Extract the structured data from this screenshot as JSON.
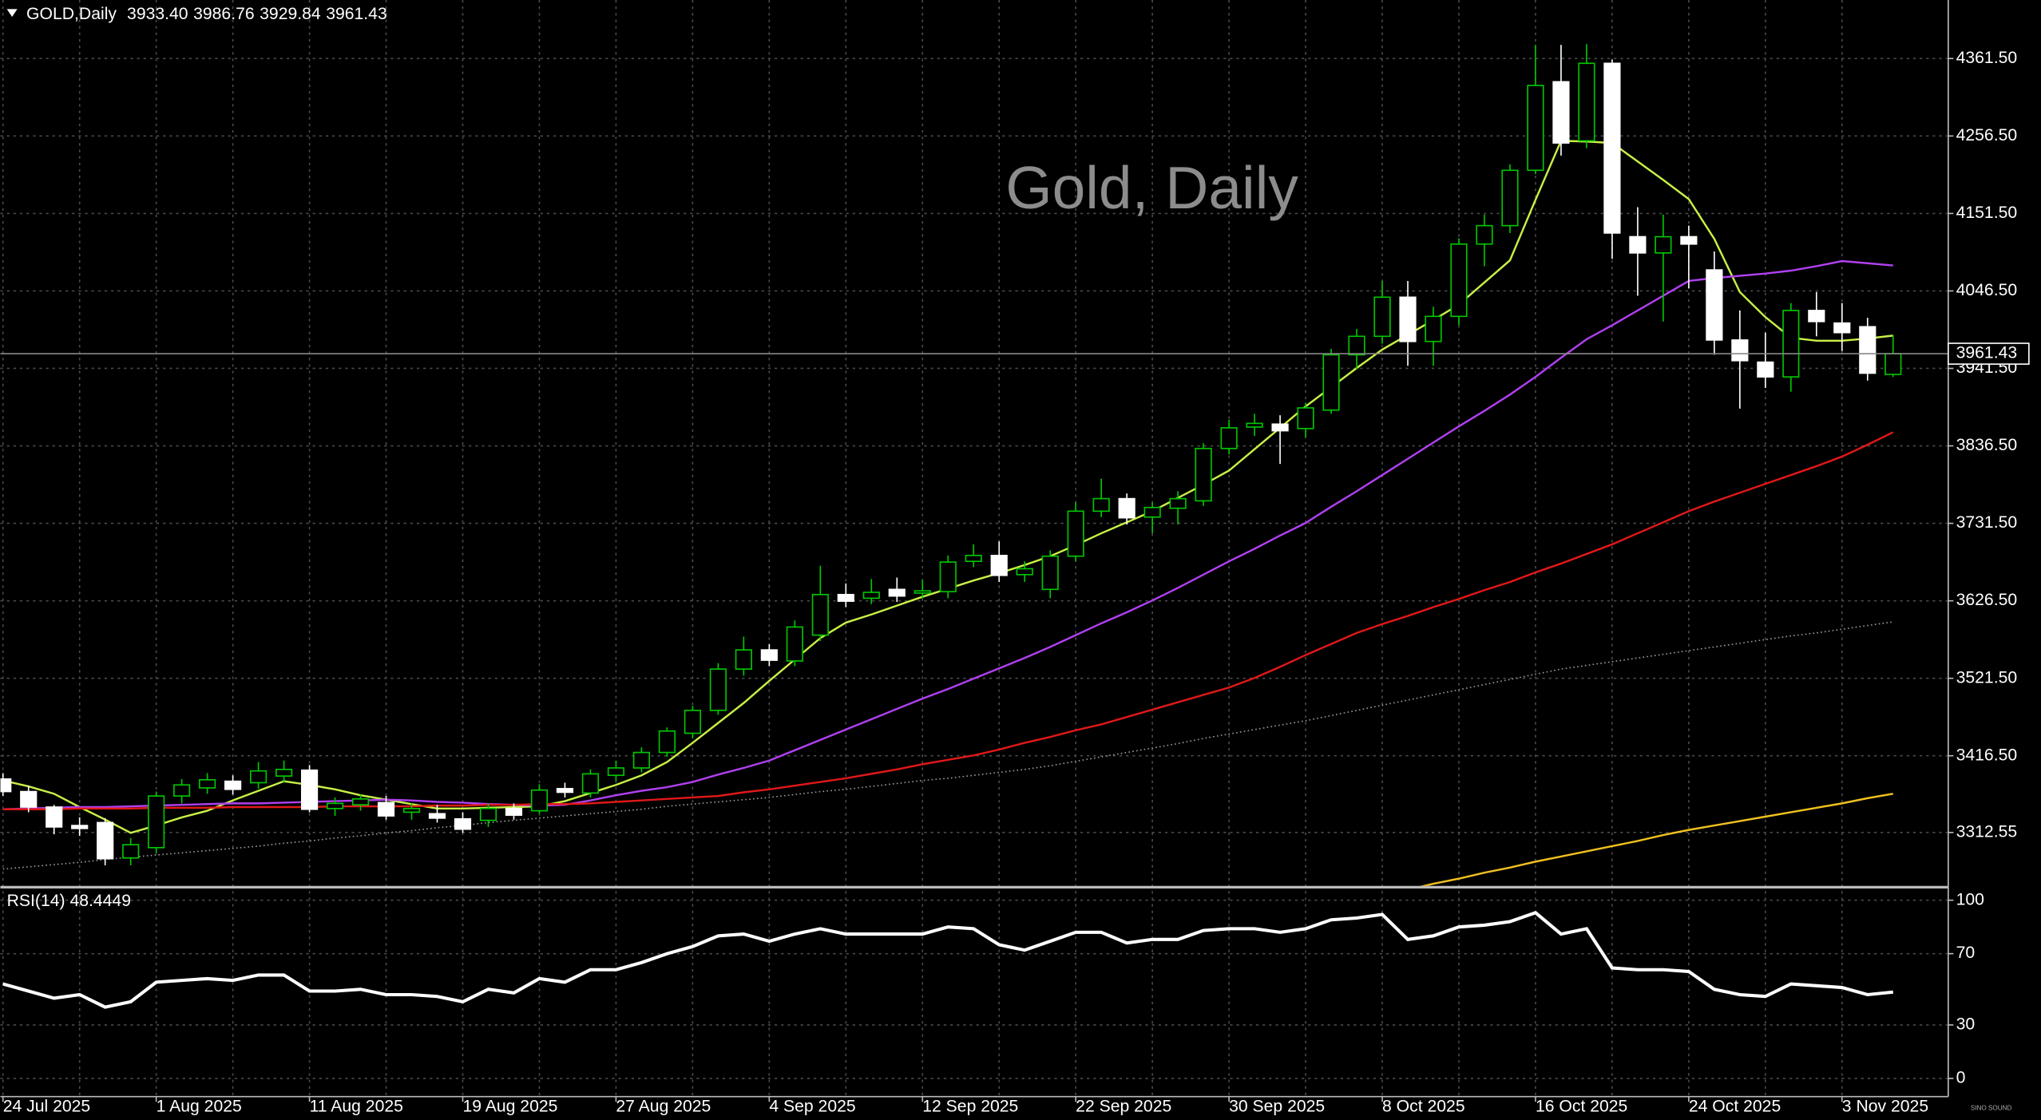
{
  "chart_data": [
    {
      "type": "candlestick",
      "title": "GOLD,Daily",
      "last_bar_labels": [
        "3933.40",
        "3986.76",
        "3929.84",
        "3961.43"
      ],
      "watermark": "Gold, Daily",
      "logo_text": "SINO SOUND",
      "categories": [
        "24 Jul 2025",
        null,
        null,
        null,
        null,
        null,
        "1 Aug 2025",
        null,
        null,
        null,
        null,
        null,
        "11 Aug 2025",
        null,
        null,
        null,
        null,
        null,
        "19 Aug 2025",
        null,
        null,
        null,
        null,
        null,
        "27 Aug 2025",
        null,
        null,
        null,
        null,
        null,
        "4 Sep 2025",
        null,
        null,
        null,
        null,
        null,
        "12 Sep 2025",
        null,
        null,
        null,
        null,
        null,
        "22 Sep 2025",
        null,
        null,
        null,
        null,
        null,
        "30 Sep 2025",
        null,
        null,
        null,
        null,
        null,
        "8 Oct 2025",
        null,
        null,
        null,
        null,
        null,
        "16 Oct 2025",
        null,
        null,
        null,
        null,
        null,
        "24 Oct 2025",
        null,
        null,
        null,
        null,
        null,
        "3 Nov 2025",
        null,
        null
      ],
      "open": [
        3385,
        3368,
        3347,
        3322,
        3326,
        3278,
        3292,
        3362,
        3373,
        3382,
        3380,
        3389,
        3397,
        3345,
        3350,
        3353,
        3340,
        3338,
        3331,
        3329,
        3345,
        3342,
        3372,
        3366,
        3390,
        3400,
        3421,
        3447,
        3478,
        3534,
        3560,
        3545,
        3580,
        3635,
        3630,
        3642,
        3637,
        3639,
        3680,
        3688,
        3662,
        3642,
        3687,
        3748,
        3765,
        3740,
        3752,
        3762,
        3833,
        3862,
        3866,
        3860,
        3885,
        3960,
        3985,
        4038,
        3978,
        4012,
        4110,
        4135,
        4210,
        4330,
        4250,
        4355,
        4120,
        4098,
        4120,
        4075,
        3980,
        3950,
        3930,
        4020,
        4003,
        3998,
        3933.4
      ],
      "high": [
        3393,
        3376,
        3350,
        3333,
        3332,
        3305,
        3368,
        3385,
        3393,
        3390,
        3408,
        3410,
        3404,
        3360,
        3364,
        3362,
        3352,
        3350,
        3340,
        3352,
        3352,
        3378,
        3380,
        3398,
        3410,
        3428,
        3455,
        3484,
        3542,
        3578,
        3568,
        3600,
        3674,
        3650,
        3656,
        3658,
        3655,
        3688,
        3703,
        3707,
        3680,
        3695,
        3760,
        3792,
        3772,
        3760,
        3775,
        3840,
        3872,
        3880,
        3878,
        3895,
        3968,
        3995,
        4060,
        4060,
        4025,
        4118,
        4150,
        4218,
        4380,
        4380,
        4381,
        4360,
        4160,
        4150,
        4135,
        4100,
        4020,
        3990,
        4030,
        4045,
        4030,
        4010,
        3986.76
      ],
      "low": [
        3362,
        3340,
        3310,
        3308,
        3268,
        3268,
        3285,
        3352,
        3365,
        3364,
        3372,
        3380,
        3340,
        3335,
        3342,
        3330,
        3330,
        3326,
        3312,
        3320,
        3330,
        3338,
        3360,
        3360,
        3382,
        3394,
        3415,
        3440,
        3472,
        3525,
        3538,
        3538,
        3572,
        3618,
        3622,
        3625,
        3630,
        3630,
        3672,
        3652,
        3652,
        3630,
        3680,
        3740,
        3730,
        3718,
        3730,
        3755,
        3825,
        3850,
        3812,
        3848,
        3880,
        3940,
        3975,
        3945,
        3945,
        4000,
        4080,
        4125,
        4205,
        4230,
        4240,
        4090,
        4040,
        4005,
        4050,
        3960,
        3887,
        3915,
        3910,
        3985,
        3965,
        3925,
        3929.84
      ],
      "close": [
        3368,
        3347,
        3320,
        3318,
        3277,
        3296,
        3362,
        3377,
        3384,
        3371,
        3396,
        3398,
        3344,
        3352,
        3358,
        3335,
        3345,
        3332,
        3317,
        3345,
        3336,
        3370,
        3367,
        3392,
        3400,
        3421,
        3450,
        3478,
        3534,
        3560,
        3546,
        3591,
        3635,
        3626,
        3638,
        3633,
        3640,
        3679,
        3688,
        3661,
        3670,
        3687,
        3748,
        3765,
        3739,
        3753,
        3765,
        3833,
        3861,
        3867,
        3857,
        3888,
        3960,
        3985,
        4038,
        3978,
        4012,
        4110,
        4135,
        4210,
        4325,
        4247,
        4355,
        4125,
        4098,
        4120,
        4110,
        3980,
        3952,
        3930,
        4020,
        4005,
        3990,
        3935,
        3961.43
      ],
      "bull_color": "#00c800",
      "bear_color": "#ffffff",
      "series": [
        {
          "color": "#c8f046",
          "style": "solid",
          "values": [
            3383,
            3375,
            3365,
            3347,
            3330,
            3312,
            3322,
            3333,
            3342,
            3356,
            3369,
            3382,
            3377,
            3371,
            3363,
            3357,
            3351,
            3345,
            3345,
            3346,
            3347,
            3348,
            3355,
            3366,
            3377,
            3390,
            3408,
            3434,
            3461,
            3488,
            3518,
            3547,
            3576,
            3597,
            3608,
            3620,
            3632,
            3643,
            3654,
            3664,
            3675,
            3687,
            3702,
            3718,
            3733,
            3748,
            3766,
            3784,
            3803,
            3832,
            3861,
            3890,
            3916,
            3942,
            3967,
            3987,
            4007,
            4028,
            4058,
            4088,
            4170,
            4250,
            4249,
            4247,
            4222,
            4197,
            4171,
            4117,
            4045,
            4011,
            3983,
            3979,
            3979,
            3982,
            3986
          ]
        },
        {
          "color": "#b040f0",
          "style": "solid",
          "values": [
            3344,
            3345,
            3346,
            3347,
            3347,
            3348,
            3349,
            3350,
            3351,
            3352,
            3352,
            3353,
            3354,
            3355,
            3356,
            3357,
            3356,
            3354,
            3353,
            3351,
            3350,
            3349,
            3350,
            3356,
            3363,
            3369,
            3374,
            3381,
            3391,
            3400,
            3410,
            3424,
            3438,
            3452,
            3466,
            3480,
            3494,
            3507,
            3521,
            3535,
            3549,
            3564,
            3580,
            3596,
            3611,
            3627,
            3644,
            3662,
            3680,
            3697,
            3715,
            3732,
            3754,
            3775,
            3797,
            3819,
            3841,
            3863,
            3884,
            3906,
            3930,
            3956,
            3981,
            4000,
            4020,
            4040,
            4060,
            4064,
            4067,
            4070,
            4074,
            4080,
            4087,
            4084,
            4081
          ]
        },
        {
          "color": "#e01818",
          "style": "solid",
          "values": [
            3344,
            3344,
            3344,
            3345,
            3345,
            3345,
            3346,
            3346,
            3346,
            3347,
            3347,
            3347,
            3347,
            3348,
            3348,
            3348,
            3348,
            3349,
            3349,
            3350,
            3350,
            3351,
            3351,
            3352,
            3354,
            3356,
            3358,
            3360,
            3362,
            3367,
            3371,
            3376,
            3381,
            3386,
            3392,
            3398,
            3405,
            3411,
            3417,
            3425,
            3434,
            3442,
            3451,
            3459,
            3469,
            3479,
            3489,
            3499,
            3509,
            3522,
            3537,
            3553,
            3568,
            3583,
            3595,
            3606,
            3618,
            3629,
            3641,
            3652,
            3665,
            3677,
            3690,
            3703,
            3718,
            3733,
            3748,
            3761,
            3773,
            3785,
            3797,
            3809,
            3822,
            3838,
            3855
          ]
        },
        {
          "color": "#9a9a9a",
          "style": "dotted",
          "values": [
            3263,
            3266,
            3269,
            3272,
            3276,
            3279,
            3282,
            3285,
            3288,
            3291,
            3294,
            3298,
            3301,
            3305,
            3308,
            3312,
            3315,
            3319,
            3322,
            3326,
            3329,
            3332,
            3335,
            3338,
            3341,
            3344,
            3348,
            3351,
            3354,
            3357,
            3360,
            3364,
            3368,
            3371,
            3375,
            3379,
            3383,
            3386,
            3390,
            3394,
            3398,
            3403,
            3409,
            3415,
            3421,
            3427,
            3433,
            3440,
            3446,
            3452,
            3458,
            3464,
            3471,
            3478,
            3485,
            3492,
            3499,
            3506,
            3513,
            3520,
            3527,
            3534,
            3539,
            3544,
            3549,
            3554,
            3559,
            3564,
            3569,
            3574,
            3579,
            3583,
            3588,
            3593,
            3598
          ]
        },
        {
          "color": "#f0c020",
          "style": "solid",
          "values": [
            null,
            null,
            null,
            null,
            null,
            null,
            null,
            null,
            null,
            null,
            null,
            null,
            null,
            null,
            null,
            null,
            null,
            null,
            null,
            null,
            null,
            null,
            null,
            null,
            null,
            null,
            null,
            null,
            null,
            null,
            null,
            null,
            null,
            null,
            null,
            null,
            null,
            null,
            null,
            null,
            null,
            null,
            null,
            null,
            null,
            null,
            null,
            null,
            null,
            null,
            null,
            null,
            null,
            null,
            null,
            3235,
            3243,
            3250,
            3258,
            3265,
            3273,
            3280,
            3287,
            3294,
            3301,
            3309,
            3316,
            3322,
            3328,
            3334,
            3340,
            3346,
            3352,
            3359,
            3365
          ]
        }
      ],
      "current_price": {
        "value": 3961.43,
        "label": "3961.43"
      },
      "ylim": [
        3240.2,
        4440.8
      ],
      "yticks": [
        {
          "value": 4361.5,
          "label": "4361.50"
        },
        {
          "value": 4256.5,
          "label": "4256.50"
        },
        {
          "value": 4151.5,
          "label": "4151.50"
        },
        {
          "value": 4046.5,
          "label": "4046.50"
        },
        {
          "value": 3941.5,
          "label": "3941.50"
        },
        {
          "value": 3836.5,
          "label": "3836.50"
        },
        {
          "value": 3731.5,
          "label": "3731.50"
        },
        {
          "value": 3626.5,
          "label": "3626.50"
        },
        {
          "value": 3521.5,
          "label": "3521.50"
        },
        {
          "value": 3416.5,
          "label": "3416.50"
        },
        3312.55
      ],
      "grid": true
    },
    {
      "type": "line",
      "title": "RSI(14) 48.4449",
      "color": "#ffffff",
      "values": [
        53,
        49,
        45,
        47,
        40,
        43,
        54,
        55,
        56,
        55,
        58,
        58,
        49,
        49,
        50,
        47,
        47,
        46,
        43,
        50,
        48,
        56,
        54,
        61,
        61,
        65,
        70,
        74,
        80,
        81,
        77,
        81,
        84,
        81,
        81,
        81,
        81,
        85,
        84,
        75,
        72,
        77,
        82,
        82,
        76,
        78,
        78,
        83,
        84,
        84,
        82,
        84,
        89,
        90,
        92,
        78,
        80,
        85,
        86,
        88,
        93,
        81,
        84,
        62,
        61,
        61,
        60,
        50,
        47,
        46,
        53,
        52,
        51,
        47,
        48.4449
      ],
      "ylim": [
        -10.2,
        106.6
      ],
      "yticks": [
        100,
        70,
        30,
        0
      ],
      "grid": true
    }
  ]
}
